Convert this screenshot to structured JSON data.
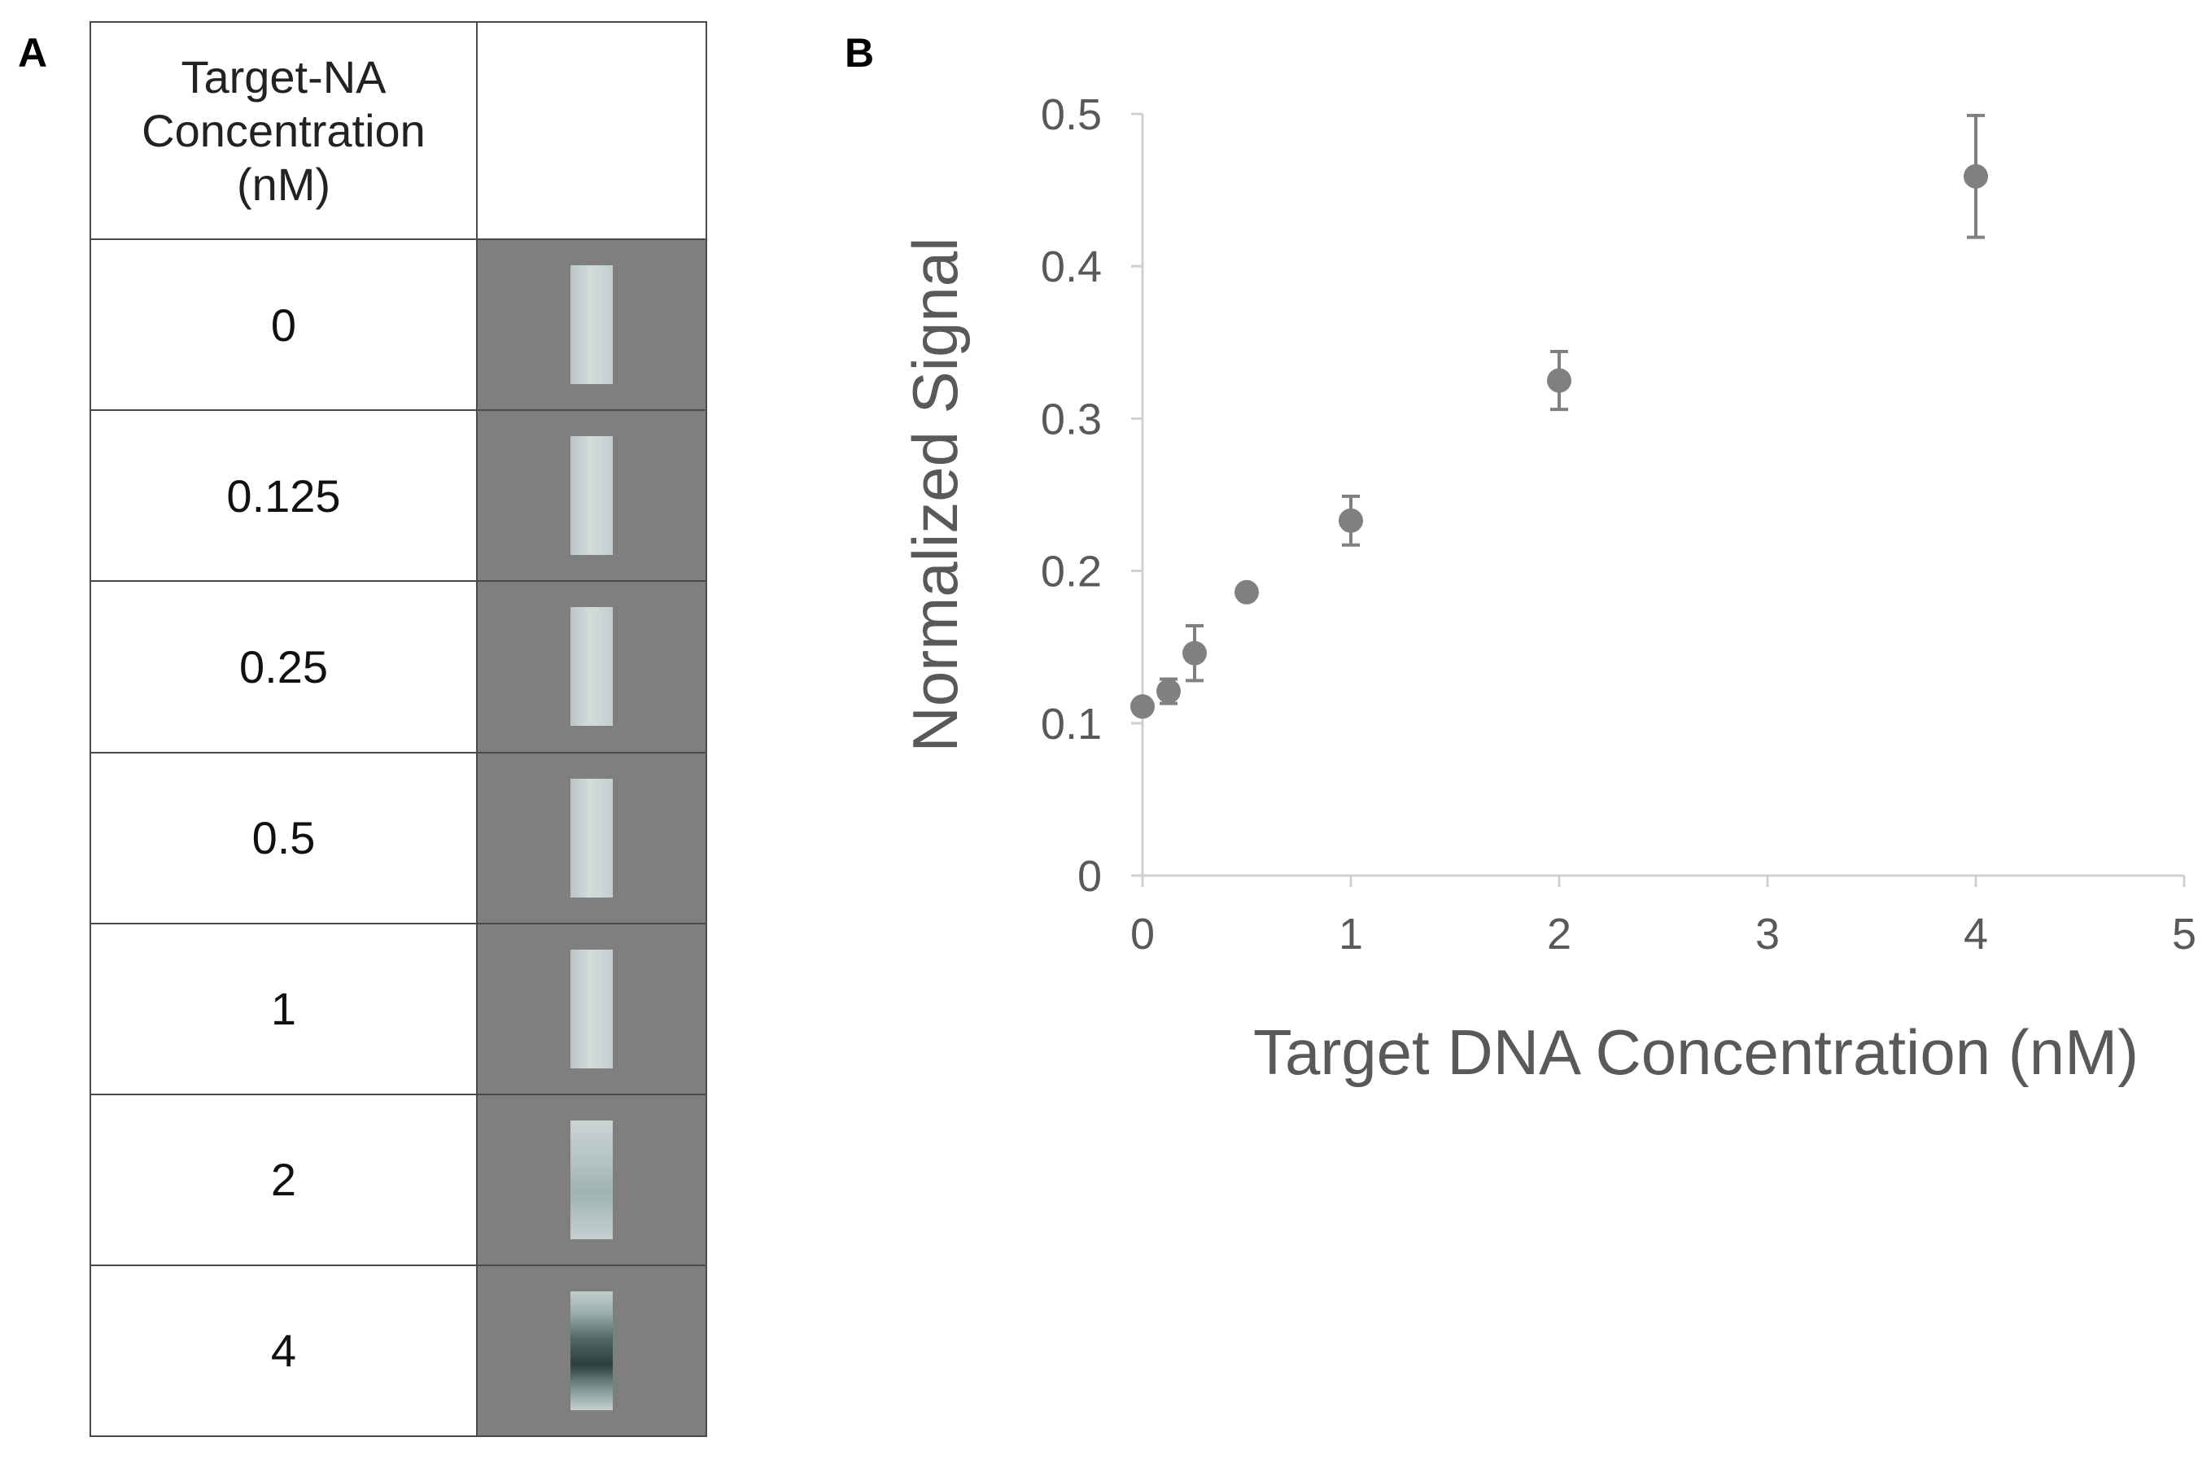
{
  "panel_labels": {
    "a": "A",
    "b": "B"
  },
  "table": {
    "header": [
      "Target-NA",
      "Concentration",
      "(nM)"
    ],
    "rows": [
      "0",
      "0.125",
      "0.25",
      "0.5",
      "1",
      "2",
      "4"
    ]
  },
  "chart_data": {
    "type": "scatter",
    "title": "",
    "xlabel": "Target DNA Concentration (nM)",
    "ylabel": "Normalized Signal",
    "xlim": [
      0,
      5
    ],
    "ylim": [
      0,
      0.5
    ],
    "x_ticks": [
      "0",
      "1",
      "2",
      "3",
      "4",
      "5"
    ],
    "y_ticks": [
      "0",
      "0.1",
      "0.2",
      "0.3",
      "0.4",
      "0.5"
    ],
    "series": [
      {
        "name": "Normalized Signal",
        "x": [
          0,
          0.125,
          0.25,
          0.5,
          1,
          2,
          4
        ],
        "y": [
          0.111,
          0.121,
          0.146,
          0.186,
          0.233,
          0.325,
          0.459
        ],
        "error": [
          0.004,
          0.008,
          0.018,
          0.0,
          0.016,
          0.019,
          0.04
        ]
      }
    ],
    "colors": {
      "marker": "#808080",
      "axis": "#d0d0d0",
      "text": "#595959"
    }
  }
}
